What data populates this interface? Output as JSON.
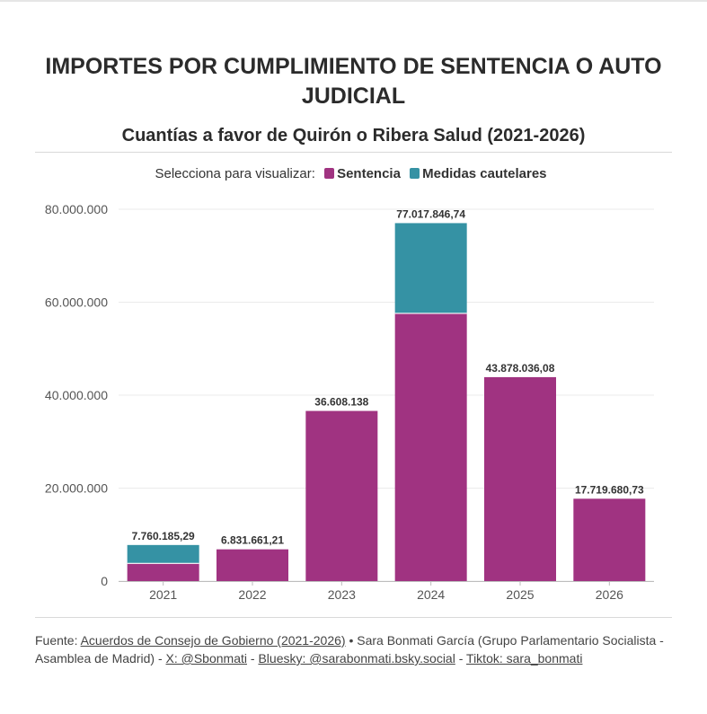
{
  "header": {
    "title": "IMPORTES POR CUMPLIMIENTO DE SENTENCIA O AUTO JUDICIAL",
    "subtitle": "Cuantías a favor de Quirón o Ribera Salud (2021-2026)"
  },
  "legend": {
    "label": "Selecciona para visualizar:",
    "items": [
      {
        "name": "Sentencia",
        "color": "#a03381"
      },
      {
        "name": "Medidas cautelares",
        "color": "#3592a4"
      }
    ]
  },
  "chart_data": {
    "type": "bar",
    "stacked": true,
    "categories": [
      "2021",
      "2022",
      "2023",
      "2024",
      "2025",
      "2026"
    ],
    "series": [
      {
        "name": "Sentencia",
        "color": "#a03381",
        "values": [
          3800000,
          6831661.21,
          36608138,
          57600000,
          43878036.08,
          17719680.73
        ]
      },
      {
        "name": "Medidas cautelares",
        "color": "#3592a4",
        "values": [
          3960185.29,
          0,
          0,
          19417846.74,
          0,
          0
        ]
      }
    ],
    "totals": [
      "7.760.185,29",
      "6.831.661,21",
      "36.608.138",
      "77.017.846,74",
      "43.878.036,08",
      "17.719.680,73"
    ],
    "yticks": [
      {
        "value": 0,
        "label": "0"
      },
      {
        "value": 20000000,
        "label": "20.000.000"
      },
      {
        "value": 40000000,
        "label": "40.000.000"
      },
      {
        "value": 60000000,
        "label": "60.000.000"
      },
      {
        "value": 80000000,
        "label": "80.000.000"
      }
    ],
    "ylim": [
      0,
      80000000
    ],
    "xlabel": "",
    "ylabel": "",
    "grid": true
  },
  "footer": {
    "prefix": "Fuente: ",
    "source_link": "Acuerdos de Consejo de Gobierno (2021-2026)",
    "author": " • Sara Bonmati García (Grupo Parlamentario Socialista - Asamblea de Madrid) - ",
    "x_link": "X: @Sbonmati",
    "sep1": " - ",
    "bluesky_link": "Bluesky: @sarabonmati.bsky.social",
    "sep2": " - ",
    "tiktok_link": "Tiktok: sara_bonmati"
  }
}
